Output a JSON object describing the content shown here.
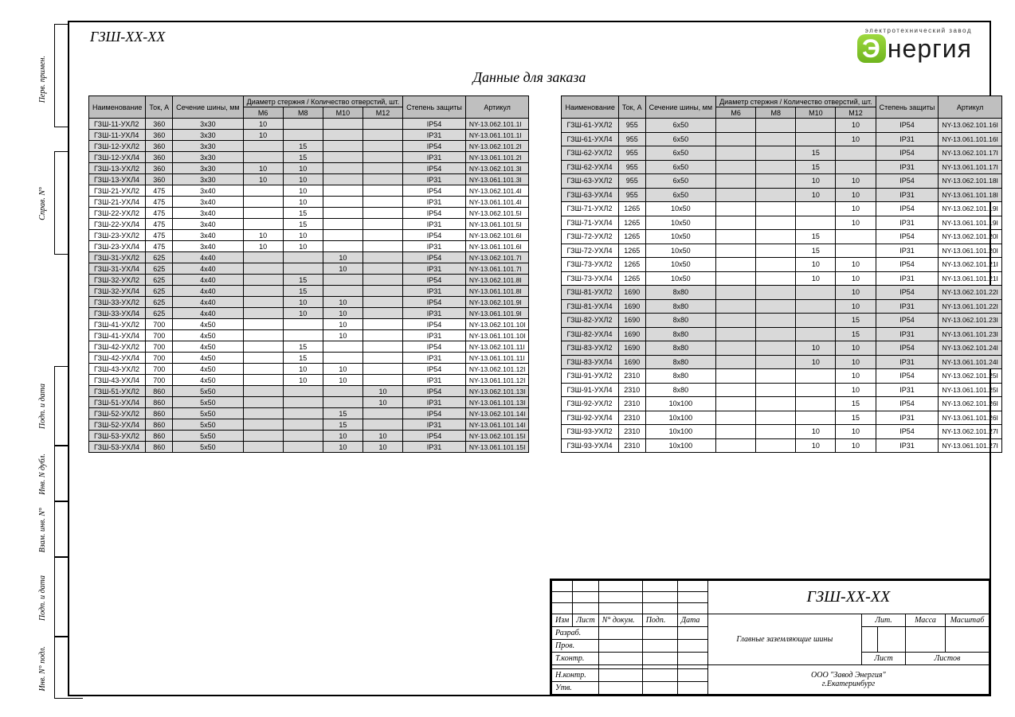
{
  "drawing_number": "ГЗШ-XX-XX",
  "logo": {
    "tagline": "электротехнический завод",
    "name": "нергия"
  },
  "page_title": "Данные для заказа",
  "headers": {
    "name": "Наименование",
    "current": "Ток, А",
    "section": "Сечение шины, мм",
    "diam_group": "Диаметр стержня / Количество отверстий, шт.",
    "m6": "М6",
    "m8": "М8",
    "m10": "М10",
    "m12": "М12",
    "ip": "Степень защиты",
    "article": "Артикул"
  },
  "side_labels": {
    "perv": "Перв. примен.",
    "sprav": "Справ. N°",
    "podp_data1": "Подп. и дата",
    "inv_dubl": "Инв. N дубл.",
    "vzam": "Взам. инв. N°",
    "podp_data2": "Подп. и дата",
    "inv_podl": "Инв. N° подл."
  },
  "title_block": {
    "designation": "ГЗШ-XX-XX",
    "description": "Главные заземляющие шины",
    "company": "ООО \"Завод Энергия\"",
    "city": "г.Екатеринбург",
    "labels": {
      "izm": "Изм",
      "list": "Лист",
      "ndok": "N° докум.",
      "podp": "Подп.",
      "data": "Дата",
      "razrab": "Разраб.",
      "prov": "Пров.",
      "tkontr": "Т.контр.",
      "nkontr": "Н.контр.",
      "utv": "Утв.",
      "lit": "Лит.",
      "massa": "Масса",
      "mash": "Масштаб",
      "list2": "Лист",
      "listov": "Листов"
    }
  },
  "table1": [
    {
      "g": 1,
      "n": "ГЗШ-11-УХЛ2",
      "a": "360",
      "s": "3х30",
      "m6": "10",
      "m8": "",
      "m10": "",
      "m12": "",
      "ip": "IP54",
      "art": "NY-13.062.101.1I"
    },
    {
      "g": 1,
      "n": "ГЗШ-11-УХЛ4",
      "a": "360",
      "s": "3х30",
      "m6": "10",
      "m8": "",
      "m10": "",
      "m12": "",
      "ip": "IP31",
      "art": "NY-13.061.101.1I"
    },
    {
      "g": 1,
      "n": "ГЗШ-12-УХЛ2",
      "a": "360",
      "s": "3х30",
      "m6": "",
      "m8": "15",
      "m10": "",
      "m12": "",
      "ip": "IP54",
      "art": "NY-13.062.101.2I"
    },
    {
      "g": 1,
      "n": "ГЗШ-12-УХЛ4",
      "a": "360",
      "s": "3х30",
      "m6": "",
      "m8": "15",
      "m10": "",
      "m12": "",
      "ip": "IP31",
      "art": "NY-13.061.101.2I"
    },
    {
      "g": 1,
      "n": "ГЗШ-13-УХЛ2",
      "a": "360",
      "s": "3х30",
      "m6": "10",
      "m8": "10",
      "m10": "",
      "m12": "",
      "ip": "IP54",
      "art": "NY-13.062.101.3I"
    },
    {
      "g": 1,
      "n": "ГЗШ-13-УХЛ4",
      "a": "360",
      "s": "3х30",
      "m6": "10",
      "m8": "10",
      "m10": "",
      "m12": "",
      "ip": "IP31",
      "art": "NY-13.061.101.3I"
    },
    {
      "g": 0,
      "n": "ГЗШ-21-УХЛ2",
      "a": "475",
      "s": "3х40",
      "m6": "",
      "m8": "10",
      "m10": "",
      "m12": "",
      "ip": "IP54",
      "art": "NY-13.062.101.4I"
    },
    {
      "g": 0,
      "n": "ГЗШ-21-УХЛ4",
      "a": "475",
      "s": "3х40",
      "m6": "",
      "m8": "10",
      "m10": "",
      "m12": "",
      "ip": "IP31",
      "art": "NY-13.061.101.4I"
    },
    {
      "g": 0,
      "n": "ГЗШ-22-УХЛ2",
      "a": "475",
      "s": "3х40",
      "m6": "",
      "m8": "15",
      "m10": "",
      "m12": "",
      "ip": "IP54",
      "art": "NY-13.062.101.5I"
    },
    {
      "g": 0,
      "n": "ГЗШ-22-УХЛ4",
      "a": "475",
      "s": "3х40",
      "m6": "",
      "m8": "15",
      "m10": "",
      "m12": "",
      "ip": "IP31",
      "art": "NY-13.061.101.5I"
    },
    {
      "g": 0,
      "n": "ГЗШ-23-УХЛ2",
      "a": "475",
      "s": "3х40",
      "m6": "10",
      "m8": "10",
      "m10": "",
      "m12": "",
      "ip": "IP54",
      "art": "NY-13.062.101.6I"
    },
    {
      "g": 0,
      "n": "ГЗШ-23-УХЛ4",
      "a": "475",
      "s": "3х40",
      "m6": "10",
      "m8": "10",
      "m10": "",
      "m12": "",
      "ip": "IP31",
      "art": "NY-13.061.101.6I"
    },
    {
      "g": 1,
      "n": "ГЗШ-31-УХЛ2",
      "a": "625",
      "s": "4х40",
      "m6": "",
      "m8": "",
      "m10": "10",
      "m12": "",
      "ip": "IP54",
      "art": "NY-13.062.101.7I"
    },
    {
      "g": 1,
      "n": "ГЗШ-31-УХЛ4",
      "a": "625",
      "s": "4х40",
      "m6": "",
      "m8": "",
      "m10": "10",
      "m12": "",
      "ip": "IP31",
      "art": "NY-13.061.101.7I"
    },
    {
      "g": 1,
      "n": "ГЗШ-32-УХЛ2",
      "a": "625",
      "s": "4х40",
      "m6": "",
      "m8": "15",
      "m10": "",
      "m12": "",
      "ip": "IP54",
      "art": "NY-13.062.101.8I"
    },
    {
      "g": 1,
      "n": "ГЗШ-32-УХЛ4",
      "a": "625",
      "s": "4х40",
      "m6": "",
      "m8": "15",
      "m10": "",
      "m12": "",
      "ip": "IP31",
      "art": "NY-13.061.101.8I"
    },
    {
      "g": 1,
      "n": "ГЗШ-33-УХЛ2",
      "a": "625",
      "s": "4х40",
      "m6": "",
      "m8": "10",
      "m10": "10",
      "m12": "",
      "ip": "IP54",
      "art": "NY-13.062.101.9I"
    },
    {
      "g": 1,
      "n": "ГЗШ-33-УХЛ4",
      "a": "625",
      "s": "4х40",
      "m6": "",
      "m8": "10",
      "m10": "10",
      "m12": "",
      "ip": "IP31",
      "art": "NY-13.061.101.9I"
    },
    {
      "g": 0,
      "n": "ГЗШ-41-УХЛ2",
      "a": "700",
      "s": "4х50",
      "m6": "",
      "m8": "",
      "m10": "10",
      "m12": "",
      "ip": "IP54",
      "art": "NY-13.062.101.10I"
    },
    {
      "g": 0,
      "n": "ГЗШ-41-УХЛ4",
      "a": "700",
      "s": "4х50",
      "m6": "",
      "m8": "",
      "m10": "10",
      "m12": "",
      "ip": "IP31",
      "art": "NY-13.061.101.10I"
    },
    {
      "g": 0,
      "n": "ГЗШ-42-УХЛ2",
      "a": "700",
      "s": "4х50",
      "m6": "",
      "m8": "15",
      "m10": "",
      "m12": "",
      "ip": "IP54",
      "art": "NY-13.062.101.11I"
    },
    {
      "g": 0,
      "n": "ГЗШ-42-УХЛ4",
      "a": "700",
      "s": "4х50",
      "m6": "",
      "m8": "15",
      "m10": "",
      "m12": "",
      "ip": "IP31",
      "art": "NY-13.061.101.11I"
    },
    {
      "g": 0,
      "n": "ГЗШ-43-УХЛ2",
      "a": "700",
      "s": "4х50",
      "m6": "",
      "m8": "10",
      "m10": "10",
      "m12": "",
      "ip": "IP54",
      "art": "NY-13.062.101.12I"
    },
    {
      "g": 0,
      "n": "ГЗШ-43-УХЛ4",
      "a": "700",
      "s": "4х50",
      "m6": "",
      "m8": "10",
      "m10": "10",
      "m12": "",
      "ip": "IP31",
      "art": "NY-13.061.101.12I"
    },
    {
      "g": 1,
      "n": "ГЗШ-51-УХЛ2",
      "a": "860",
      "s": "5х50",
      "m6": "",
      "m8": "",
      "m10": "",
      "m12": "10",
      "ip": "IP54",
      "art": "NY-13.062.101.13I"
    },
    {
      "g": 1,
      "n": "ГЗШ-51-УХЛ4",
      "a": "860",
      "s": "5х50",
      "m6": "",
      "m8": "",
      "m10": "",
      "m12": "10",
      "ip": "IP31",
      "art": "NY-13.061.101.13I"
    },
    {
      "g": 1,
      "n": "ГЗШ-52-УХЛ2",
      "a": "860",
      "s": "5х50",
      "m6": "",
      "m8": "",
      "m10": "15",
      "m12": "",
      "ip": "IP54",
      "art": "NY-13.062.101.14I"
    },
    {
      "g": 1,
      "n": "ГЗШ-52-УХЛ4",
      "a": "860",
      "s": "5х50",
      "m6": "",
      "m8": "",
      "m10": "15",
      "m12": "",
      "ip": "IP31",
      "art": "NY-13.061.101.14I"
    },
    {
      "g": 1,
      "n": "ГЗШ-53-УХЛ2",
      "a": "860",
      "s": "5х50",
      "m6": "",
      "m8": "",
      "m10": "10",
      "m12": "10",
      "ip": "IP54",
      "art": "NY-13.062.101.15I"
    },
    {
      "g": 1,
      "n": "ГЗШ-53-УХЛ4",
      "a": "860",
      "s": "5х50",
      "m6": "",
      "m8": "",
      "m10": "10",
      "m12": "10",
      "ip": "IP31",
      "art": "NY-13.061.101.15I"
    }
  ],
  "table2": [
    {
      "g": 1,
      "n": "ГЗШ-61-УХЛ2",
      "a": "955",
      "s": "6х50",
      "m6": "",
      "m8": "",
      "m10": "",
      "m12": "10",
      "ip": "IP54",
      "art": "NY-13.062.101.16I"
    },
    {
      "g": 1,
      "n": "ГЗШ-61-УХЛ4",
      "a": "955",
      "s": "6х50",
      "m6": "",
      "m8": "",
      "m10": "",
      "m12": "10",
      "ip": "IP31",
      "art": "NY-13.061.101.16I"
    },
    {
      "g": 1,
      "n": "ГЗШ-62-УХЛ2",
      "a": "955",
      "s": "6х50",
      "m6": "",
      "m8": "",
      "m10": "15",
      "m12": "",
      "ip": "IP54",
      "art": "NY-13.062.101.17I"
    },
    {
      "g": 1,
      "n": "ГЗШ-62-УХЛ4",
      "a": "955",
      "s": "6х50",
      "m6": "",
      "m8": "",
      "m10": "15",
      "m12": "",
      "ip": "IP31",
      "art": "NY-13.061.101.17I"
    },
    {
      "g": 1,
      "n": "ГЗШ-63-УХЛ2",
      "a": "955",
      "s": "6х50",
      "m6": "",
      "m8": "",
      "m10": "10",
      "m12": "10",
      "ip": "IP54",
      "art": "NY-13.062.101.18I"
    },
    {
      "g": 1,
      "n": "ГЗШ-63-УХЛ4",
      "a": "955",
      "s": "6х50",
      "m6": "",
      "m8": "",
      "m10": "10",
      "m12": "10",
      "ip": "IP31",
      "art": "NY-13.061.101.18I"
    },
    {
      "g": 0,
      "n": "ГЗШ-71-УХЛ2",
      "a": "1265",
      "s": "10х50",
      "m6": "",
      "m8": "",
      "m10": "",
      "m12": "10",
      "ip": "IP54",
      "art": "NY-13.062.101.19I"
    },
    {
      "g": 0,
      "n": "ГЗШ-71-УХЛ4",
      "a": "1265",
      "s": "10х50",
      "m6": "",
      "m8": "",
      "m10": "",
      "m12": "10",
      "ip": "IP31",
      "art": "NY-13.061.101.19I"
    },
    {
      "g": 0,
      "n": "ГЗШ-72-УХЛ2",
      "a": "1265",
      "s": "10х50",
      "m6": "",
      "m8": "",
      "m10": "15",
      "m12": "",
      "ip": "IP54",
      "art": "NY-13.062.101.20I"
    },
    {
      "g": 0,
      "n": "ГЗШ-72-УХЛ4",
      "a": "1265",
      "s": "10х50",
      "m6": "",
      "m8": "",
      "m10": "15",
      "m12": "",
      "ip": "IP31",
      "art": "NY-13.061.101.20I"
    },
    {
      "g": 0,
      "n": "ГЗШ-73-УХЛ2",
      "a": "1265",
      "s": "10х50",
      "m6": "",
      "m8": "",
      "m10": "10",
      "m12": "10",
      "ip": "IP54",
      "art": "NY-13.062.101.21I"
    },
    {
      "g": 0,
      "n": "ГЗШ-73-УХЛ4",
      "a": "1265",
      "s": "10х50",
      "m6": "",
      "m8": "",
      "m10": "10",
      "m12": "10",
      "ip": "IP31",
      "art": "NY-13.061.101.21I"
    },
    {
      "g": 1,
      "n": "ГЗШ-81-УХЛ2",
      "a": "1690",
      "s": "8х80",
      "m6": "",
      "m8": "",
      "m10": "",
      "m12": "10",
      "ip": "IP54",
      "art": "NY-13.062.101.22I"
    },
    {
      "g": 1,
      "n": "ГЗШ-81-УХЛ4",
      "a": "1690",
      "s": "8х80",
      "m6": "",
      "m8": "",
      "m10": "",
      "m12": "10",
      "ip": "IP31",
      "art": "NY-13.061.101.22I"
    },
    {
      "g": 1,
      "n": "ГЗШ-82-УХЛ2",
      "a": "1690",
      "s": "8х80",
      "m6": "",
      "m8": "",
      "m10": "",
      "m12": "15",
      "ip": "IP54",
      "art": "NY-13.062.101.23I"
    },
    {
      "g": 1,
      "n": "ГЗШ-82-УХЛ4",
      "a": "1690",
      "s": "8х80",
      "m6": "",
      "m8": "",
      "m10": "",
      "m12": "15",
      "ip": "IP31",
      "art": "NY-13.061.101.23I"
    },
    {
      "g": 1,
      "n": "ГЗШ-83-УХЛ2",
      "a": "1690",
      "s": "8х80",
      "m6": "",
      "m8": "",
      "m10": "10",
      "m12": "10",
      "ip": "IP54",
      "art": "NY-13.062.101.24I"
    },
    {
      "g": 1,
      "n": "ГЗШ-83-УХЛ4",
      "a": "1690",
      "s": "8х80",
      "m6": "",
      "m8": "",
      "m10": "10",
      "m12": "10",
      "ip": "IP31",
      "art": "NY-13.061.101.24I"
    },
    {
      "g": 0,
      "n": "ГЗШ-91-УХЛ2",
      "a": "2310",
      "s": "8х80",
      "m6": "",
      "m8": "",
      "m10": "",
      "m12": "10",
      "ip": "IP54",
      "art": "NY-13.062.101.25I"
    },
    {
      "g": 0,
      "n": "ГЗШ-91-УХЛ4",
      "a": "2310",
      "s": "8х80",
      "m6": "",
      "m8": "",
      "m10": "",
      "m12": "10",
      "ip": "IP31",
      "art": "NY-13.061.101.25I"
    },
    {
      "g": 0,
      "n": "ГЗШ-92-УХЛ2",
      "a": "2310",
      "s": "10х100",
      "m6": "",
      "m8": "",
      "m10": "",
      "m12": "15",
      "ip": "IP54",
      "art": "NY-13.062.101.26I"
    },
    {
      "g": 0,
      "n": "ГЗШ-92-УХЛ4",
      "a": "2310",
      "s": "10х100",
      "m6": "",
      "m8": "",
      "m10": "",
      "m12": "15",
      "ip": "IP31",
      "art": "NY-13.061.101.26I"
    },
    {
      "g": 0,
      "n": "ГЗШ-93-УХЛ2",
      "a": "2310",
      "s": "10х100",
      "m6": "",
      "m8": "",
      "m10": "10",
      "m12": "10",
      "ip": "IP54",
      "art": "NY-13.062.101.27I"
    },
    {
      "g": 0,
      "n": "ГЗШ-93-УХЛ4",
      "a": "2310",
      "s": "10х100",
      "m6": "",
      "m8": "",
      "m10": "10",
      "m12": "10",
      "ip": "IP31",
      "art": "NY-13.061.101.27I"
    }
  ]
}
